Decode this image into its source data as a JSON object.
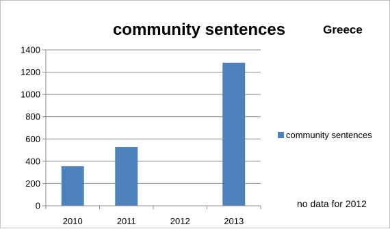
{
  "chart_data": {
    "type": "bar",
    "title": "community sentences",
    "subtitle": "Greece",
    "categories": [
      "2010",
      "2011",
      "2012",
      "2013"
    ],
    "series": [
      {
        "name": "community sentences",
        "values": [
          355,
          528,
          null,
          1285
        ],
        "color": "#4f81bd"
      }
    ],
    "ylim": [
      0,
      1400
    ],
    "yticks": [
      0,
      200,
      400,
      600,
      800,
      1000,
      1200,
      1400
    ],
    "grid": true,
    "legend_position": "right",
    "annotation": "no data for 2012"
  }
}
